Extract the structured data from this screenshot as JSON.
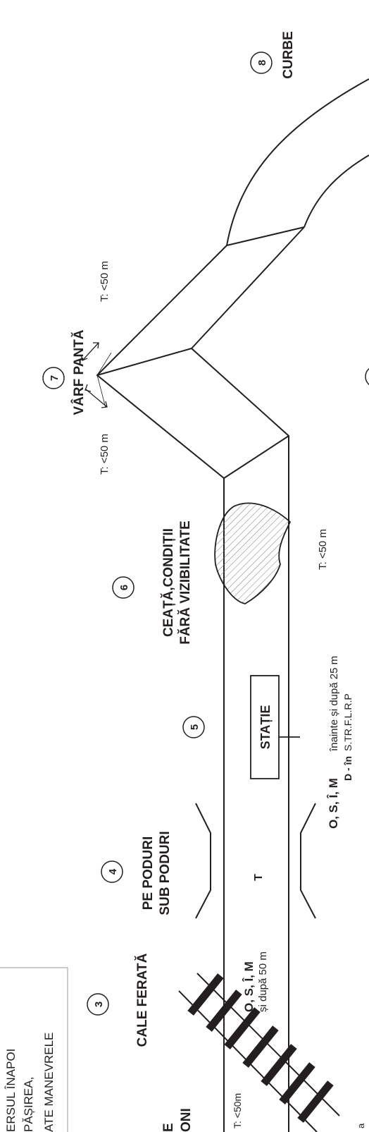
{
  "labels": {
    "box_line1": "ERSUL ÎNAPOI",
    "box_line2": "PĂȘIREA,",
    "box_line3": "ATE MANEVRELE",
    "num3": "3",
    "cale_ferata": "CALE FERATĂ",
    "num4": "4",
    "pe_poduri": "PE PODURI",
    "sub_poduri": "SUB PODURI",
    "num5": "5",
    "num6": "6",
    "ceata1": "CEAȚĂ,CONDIȚII",
    "ceata2": "FĂRĂ VIZIBILITATE",
    "num7": "7",
    "varf_panta": "VÂRF PANTĂ",
    "num8": "8",
    "curbe": "CURBE",
    "statie": "STAȚIE",
    "partial_e": "E",
    "partial_oni": "ONI",
    "t50m_left": "T: <50m",
    "osim1": "O, S, Î, M",
    "dupa50": "și după 50 m",
    "t_bridge": "T",
    "osim2": "O, S, Î, M",
    "inainte25": "înainte și după 25 m",
    "d_in": "D - în",
    "strflrp": "S.TR.F.L.R.P",
    "t50_fog": "T: <50 m",
    "t50_peak_left": "T: <50 m",
    "t50_peak_right": "T: <50 m",
    "bottom_fragment": "a"
  },
  "colors": {
    "ink": "#231f20",
    "fog_hatch": "#7a7a7a",
    "box_border": "#9a9a9a"
  }
}
